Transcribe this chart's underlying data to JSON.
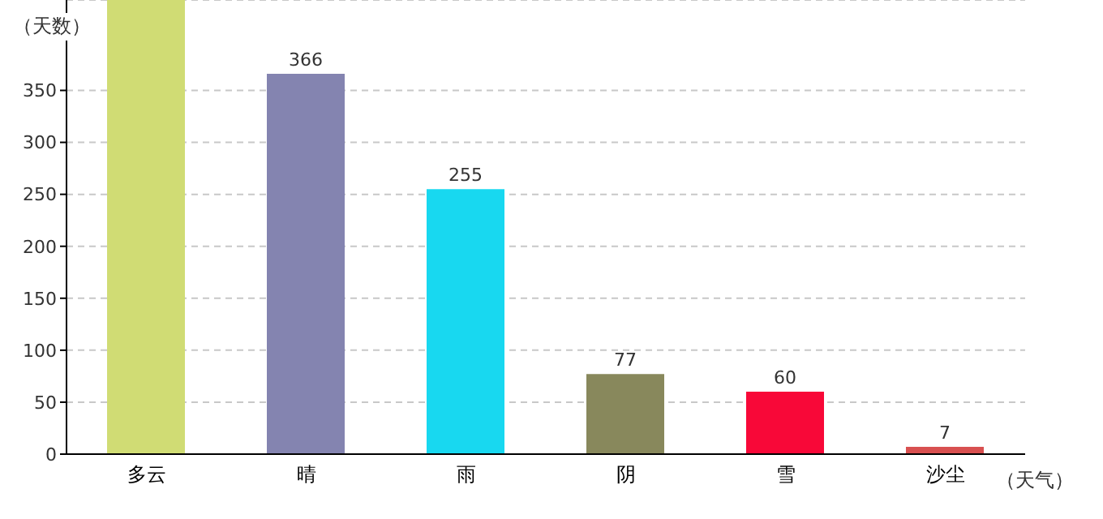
{
  "chart_data": {
    "type": "bar",
    "xlabel": "（天气）",
    "ylabel": "（天数）",
    "categories": [
      "多云",
      "晴",
      "雨",
      "阴",
      "雪",
      "沙尘"
    ],
    "values": [
      437,
      366,
      255,
      77,
      60,
      7
    ],
    "colors": [
      "#d0dc74",
      "#8484b0",
      "#18d8f0",
      "#88885c",
      "#f80838",
      "#d85050"
    ],
    "value_labels": [
      null,
      "366",
      "255",
      "77",
      "60",
      "7"
    ],
    "ylim": [
      0,
      437
    ],
    "yticks": [
      0,
      50,
      100,
      150,
      200,
      250,
      300,
      350
    ],
    "grid": "y"
  }
}
